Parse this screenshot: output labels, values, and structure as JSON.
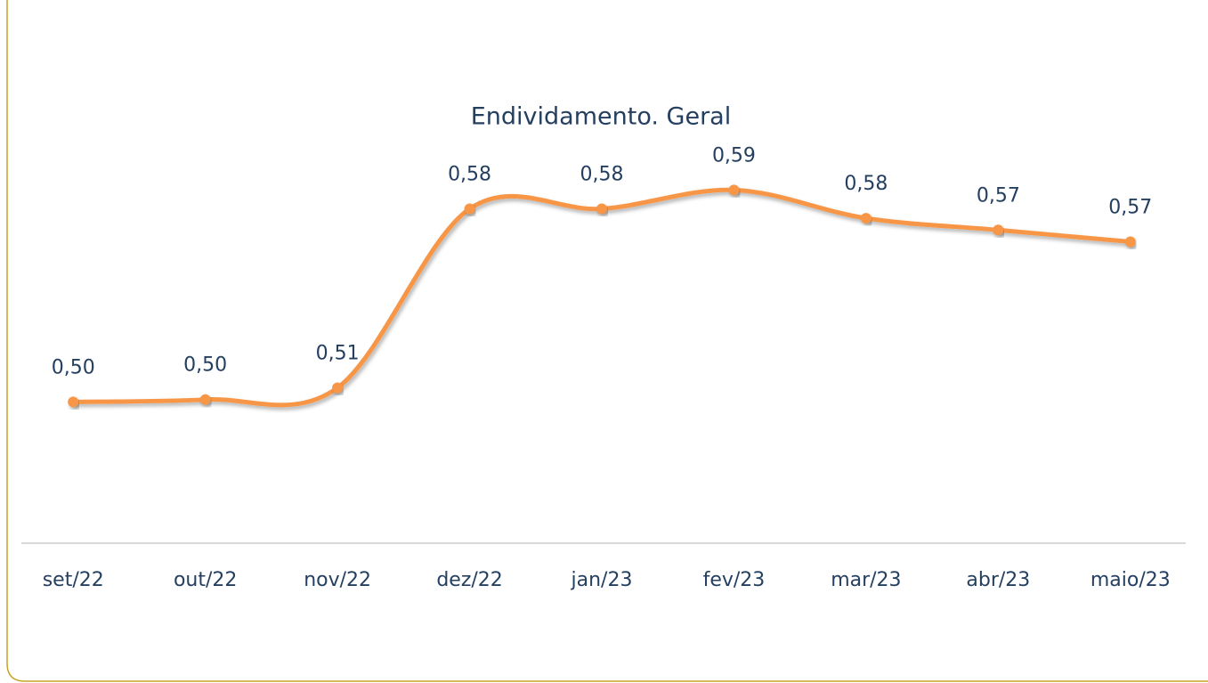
{
  "chart_data": {
    "type": "line",
    "title": "Endividamento. Geral",
    "categories": [
      "set/22",
      "out/22",
      "nov/22",
      "dez/22",
      "jan/23",
      "fev/23",
      "mar/23",
      "abr/23",
      "maio/23"
    ],
    "series": [
      {
        "name": null,
        "color": "#f79646",
        "values": [
          0.5,
          0.501,
          0.506,
          0.582,
          0.582,
          0.59,
          0.578,
          0.573,
          0.568
        ],
        "value_labels": [
          "0,50",
          "0,50",
          "0,51",
          "0,58",
          "0,58",
          "0,59",
          "0,58",
          "0,57",
          "0,57"
        ]
      }
    ],
    "ylim": [
      0.44,
      0.62
    ],
    "smooth": true
  }
}
